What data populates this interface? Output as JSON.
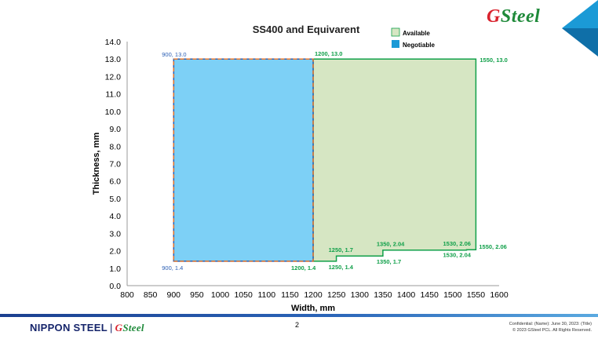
{
  "brand": {
    "logo_g": "G",
    "logo_rest": "Steel"
  },
  "footer": {
    "nippon_steel": "NIPPON STEEL",
    "separator": "|",
    "gs_g": "G",
    "gs_rest": "Steel",
    "page_number": "2",
    "confidential_line1": "Confidential: (Name): June 30, 2023: (Title)",
    "confidential_line2": "© 2023 GSteel PCL. All Rights Reserved."
  },
  "colors": {
    "available_fill": "#d6e6c3",
    "available_stroke": "#11a04a",
    "negotiable_fill": "#7dd0f6",
    "negotiable_stroke": "#2b5fb4",
    "negotiable_dash": "#e8762b",
    "brand_green": "#1f8a3a",
    "brand_red": "#d9232e",
    "accent_blue": "#1b9ad6"
  },
  "chart_data": {
    "type": "area",
    "title": "SS400 and Equivarent",
    "xlabel": "Width, mm",
    "ylabel": "Thickness, mm",
    "xlim": [
      800,
      1600
    ],
    "ylim": [
      0,
      14
    ],
    "xticks": [
      "800",
      "850",
      "900",
      "950",
      "1000",
      "1050",
      "1100",
      "1150",
      "1200",
      "1250",
      "1300",
      "1350",
      "1400",
      "1450",
      "1500",
      "1550",
      "1600"
    ],
    "yticks": [
      "0.0",
      "1.0",
      "2.0",
      "3.0",
      "4.0",
      "5.0",
      "6.0",
      "7.0",
      "8.0",
      "9.0",
      "10.0",
      "11.0",
      "12.0",
      "13.0",
      "14.0"
    ],
    "grid": false,
    "legend_position": "top-right",
    "series": [
      {
        "name": "Available",
        "points": [
          [
            1200,
            1.4
          ],
          [
            1250,
            1.4
          ],
          [
            1250,
            1.7
          ],
          [
            1350,
            1.7
          ],
          [
            1350,
            2.04
          ],
          [
            1530,
            2.04
          ],
          [
            1530,
            2.06
          ],
          [
            1550,
            2.06
          ],
          [
            1550,
            13.0
          ],
          [
            1200,
            13.0
          ]
        ]
      },
      {
        "name": "Negotiable",
        "points": [
          [
            900,
            1.4
          ],
          [
            1200,
            1.4
          ],
          [
            1200,
            13.0
          ],
          [
            900,
            13.0
          ]
        ]
      }
    ],
    "annotations": [
      {
        "text": "900, 13.0",
        "x": 900,
        "y": 13.0,
        "series": "Negotiable"
      },
      {
        "text": "900, 1.4",
        "x": 900,
        "y": 1.4,
        "series": "Negotiable"
      },
      {
        "text": "1200, 13.0",
        "x": 1200,
        "y": 13.0,
        "series": "Available"
      },
      {
        "text": "1550, 13.0",
        "x": 1550,
        "y": 13.0,
        "series": "Available"
      },
      {
        "text": "1200, 1.4",
        "x": 1200,
        "y": 1.4,
        "series": "Available"
      },
      {
        "text": "1250, 1.4",
        "x": 1250,
        "y": 1.4,
        "series": "Available"
      },
      {
        "text": "1250, 1.7",
        "x": 1250,
        "y": 1.7,
        "series": "Available"
      },
      {
        "text": "1350, 2.04",
        "x": 1350,
        "y": 2.04,
        "series": "Available"
      },
      {
        "text": "1350, 1.7",
        "x": 1350,
        "y": 1.7,
        "series": "Available"
      },
      {
        "text": "1530, 2.06",
        "x": 1530,
        "y": 2.06,
        "series": "Available"
      },
      {
        "text": "1530, 2.04",
        "x": 1530,
        "y": 2.04,
        "series": "Available"
      },
      {
        "text": "1550, 2.06",
        "x": 1550,
        "y": 2.06,
        "series": "Available"
      }
    ]
  }
}
